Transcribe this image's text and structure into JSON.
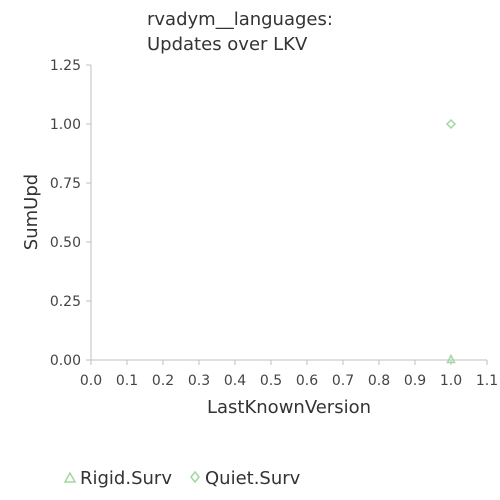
{
  "chart_data": {
    "type": "scatter",
    "title_lines": [
      "rvadym__languages:",
      "Updates over LKV"
    ],
    "xlabel": "LastKnownVersion",
    "ylabel": "SumUpd",
    "xlim": [
      0.0,
      1.1
    ],
    "ylim": [
      0.0,
      1.25
    ],
    "xticks": [
      "0.0",
      "0.1",
      "0.2",
      "0.3",
      "0.4",
      "0.5",
      "0.6",
      "0.7",
      "0.8",
      "0.9",
      "1.0",
      "1.1"
    ],
    "yticks": [
      "0.00",
      "0.25",
      "0.50",
      "0.75",
      "1.00",
      "1.25"
    ],
    "grid": false,
    "legend_position": "bottom",
    "series": [
      {
        "name": "Rigid.Surv",
        "marker": "triangle",
        "color": "#9fd79f",
        "points": [
          {
            "x": 1.0,
            "y": 0.0
          }
        ]
      },
      {
        "name": "Quiet.Surv",
        "marker": "diamond",
        "color": "#9fd79f",
        "points": [
          {
            "x": 1.0,
            "y": 1.0
          }
        ]
      }
    ]
  }
}
